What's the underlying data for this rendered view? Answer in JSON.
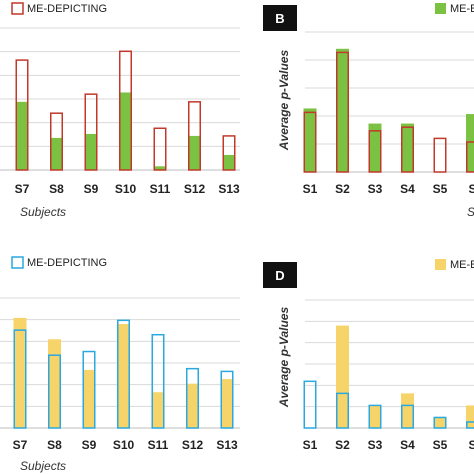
{
  "colors": {
    "red": "#c0392b",
    "green": "#7cc242",
    "blue": "#29a9e0",
    "yellow": "#f7d46a",
    "grid": "#d9d9d9",
    "badge": "#111111"
  },
  "chart_data": [
    {
      "panel": "A",
      "type": "bar",
      "legend": "ME-DEPICTING",
      "legend_color": "#c0392b",
      "outline_color": "#c0392b",
      "fill_color": "#7cc242",
      "xlabel": "Subjects",
      "ylabel": "",
      "categories": [
        "S7",
        "S8",
        "S9",
        "S10",
        "S11",
        "S12",
        "S13"
      ],
      "ylim": [
        0,
        5
      ],
      "grid": true,
      "series": [
        {
          "values": [
            3.87,
            2.0,
            2.67,
            4.18,
            1.47,
            2.4,
            1.2
          ]
        },
        {
          "values": [
            2.4,
            1.13,
            1.27,
            2.73,
            0.13,
            1.2,
            0.53
          ]
        }
      ]
    },
    {
      "panel": "B",
      "badge": "B",
      "type": "bar",
      "legend": "ME-E",
      "legend_color": "#7cc242",
      "outline_color": "#c0392b",
      "fill_color": "#7cc242",
      "xlabel": "S",
      "ylabel": "Average p-Values",
      "categories": [
        "S1",
        "S2",
        "S3",
        "S4",
        "S5",
        "S"
      ],
      "ylim": [
        0,
        5
      ],
      "grid": true,
      "series": [
        {
          "values": [
            2.13,
            4.27,
            1.47,
            1.6,
            1.2,
            1.07
          ]
        },
        {
          "values": [
            2.27,
            4.4,
            1.73,
            1.73,
            0.0,
            2.07
          ]
        }
      ]
    },
    {
      "panel": "C",
      "type": "bar",
      "legend": "ME-DEPICTING",
      "legend_color": "#29a9e0",
      "outline_color": "#29a9e0",
      "fill_color": "#f7d46a",
      "xlabel": "Subjects",
      "ylabel": "",
      "categories": [
        "S7",
        "S8",
        "S9",
        "S10",
        "S11",
        "S12",
        "S13"
      ],
      "ylim": [
        0,
        4.25
      ],
      "grid": true,
      "series": [
        {
          "values": [
            3.2,
            2.38,
            2.5,
            3.52,
            3.05,
            1.94,
            1.85
          ]
        },
        {
          "values": [
            3.6,
            2.9,
            1.9,
            3.4,
            1.17,
            1.45,
            1.6
          ]
        }
      ]
    },
    {
      "panel": "D",
      "badge": "D",
      "type": "bar",
      "legend": "ME-E",
      "legend_color": "#f7d46a",
      "outline_color": "#29a9e0",
      "fill_color": "#f7d46a",
      "xlabel": "",
      "ylabel": "Average p-Values",
      "categories": [
        "S1",
        "S2",
        "S3",
        "S4",
        "S5",
        "S"
      ],
      "ylim": [
        0,
        4.25
      ],
      "grid": true,
      "series": [
        {
          "values": [
            1.55,
            1.15,
            0.75,
            0.75,
            0.35,
            0.2
          ]
        },
        {
          "values": [
            0.0,
            3.4,
            0.75,
            1.15,
            0.35,
            0.75
          ]
        }
      ]
    }
  ]
}
